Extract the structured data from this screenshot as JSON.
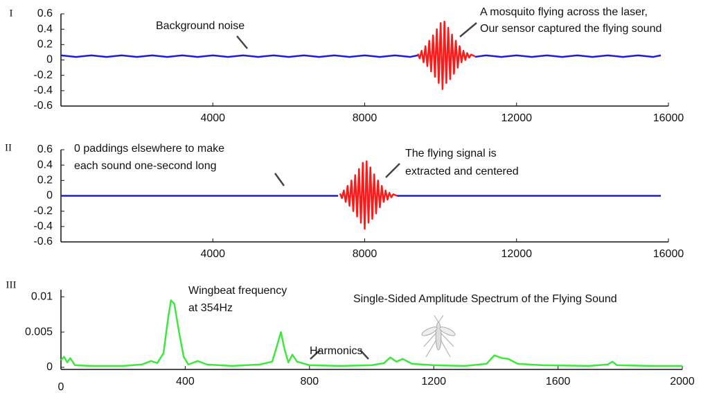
{
  "chart_data": [
    {
      "type": "line",
      "panel_label": "I",
      "annotations": [
        "Background noise",
        "A mosquito flying across the laser,",
        "Our sensor captured the flying sound"
      ],
      "xlim": [
        0,
        16000
      ],
      "xticks": [
        4000,
        8000,
        12000,
        16000
      ],
      "ylim": [
        -0.6,
        0.6
      ],
      "yticks": [
        0.6,
        0.4,
        0.2,
        0,
        -0.2,
        -0.4,
        -0.6
      ],
      "series": [
        {
          "color": "#1a1ae6",
          "x": [
            0,
            400,
            800,
            1200,
            1600,
            2000,
            2400,
            2800,
            3200,
            3600,
            4000,
            4400,
            4800,
            5200,
            5600,
            6000,
            6400,
            6800,
            7200,
            7600,
            8000,
            8400,
            8800,
            9200,
            9400,
            9500,
            10900,
            11200,
            11600,
            12000,
            12400,
            12800,
            13200,
            13600,
            14000,
            14400,
            14800,
            15200,
            15600,
            15800
          ],
          "values": [
            0.06,
            0.04,
            0.06,
            0.04,
            0.06,
            0.04,
            0.06,
            0.04,
            0.06,
            0.04,
            0.06,
            0.04,
            0.06,
            0.04,
            0.06,
            0.04,
            0.06,
            0.04,
            0.06,
            0.04,
            0.06,
            0.04,
            0.06,
            0.04,
            0.06,
            null,
            0.04,
            0.06,
            0.04,
            0.06,
            0.04,
            0.06,
            0.04,
            0.06,
            0.04,
            0.06,
            0.04,
            0.06,
            0.04,
            0.06
          ]
        },
        {
          "color": "#ff1a1a",
          "x": [
            9400,
            9450,
            9500,
            9550,
            9600,
            9650,
            9700,
            9750,
            9800,
            9850,
            9900,
            9950,
            10000,
            10050,
            10100,
            10150,
            10200,
            10250,
            10300,
            10350,
            10400,
            10450,
            10500,
            10550,
            10600,
            10650,
            10700,
            10750,
            10800,
            10900
          ],
          "values": [
            0.08,
            0.02,
            0.12,
            -0.03,
            0.18,
            -0.08,
            0.25,
            -0.15,
            0.32,
            -0.22,
            0.4,
            -0.3,
            0.48,
            -0.38,
            0.5,
            -0.3,
            0.42,
            -0.25,
            0.33,
            -0.18,
            0.25,
            -0.1,
            0.18,
            -0.03,
            0.12,
            0,
            0.09,
            0.03,
            0.07,
            0.05
          ]
        }
      ]
    },
    {
      "type": "line",
      "panel_label": "II",
      "annotations": [
        "0 paddings elsewhere to make",
        "each sound one-second long",
        "The flying signal is",
        "extracted and centered"
      ],
      "xlim": [
        0,
        16000
      ],
      "xticks": [
        4000,
        8000,
        12000,
        16000
      ],
      "ylim": [
        -0.6,
        0.6
      ],
      "yticks": [
        0.6,
        0.4,
        0.2,
        0,
        -0.2,
        -0.4,
        -0.6
      ],
      "series": [
        {
          "color": "#1a1ae6",
          "x": [
            0,
            7300,
            7350,
            8850,
            15800
          ],
          "values": [
            0,
            0,
            null,
            0,
            0
          ]
        },
        {
          "color": "#ff1a1a",
          "x": [
            7350,
            7400,
            7450,
            7500,
            7550,
            7600,
            7650,
            7700,
            7750,
            7800,
            7850,
            7900,
            7950,
            8000,
            8050,
            8100,
            8150,
            8200,
            8250,
            8300,
            8350,
            8400,
            8450,
            8500,
            8550,
            8600,
            8650,
            8700,
            8750,
            8850
          ],
          "values": [
            0.03,
            -0.03,
            0.07,
            -0.08,
            0.13,
            -0.13,
            0.2,
            -0.2,
            0.27,
            -0.27,
            0.35,
            -0.35,
            0.43,
            -0.43,
            0.45,
            -0.35,
            0.37,
            -0.3,
            0.28,
            -0.23,
            0.2,
            -0.15,
            0.13,
            -0.08,
            0.07,
            -0.05,
            0.04,
            -0.02,
            0.02,
            0
          ]
        }
      ]
    },
    {
      "type": "line",
      "panel_label": "III",
      "annotations": [
        "Wingbeat frequency",
        "at 354Hz",
        "Harmonics",
        "Single-Sided Amplitude Spectrum of the Flying Sound"
      ],
      "xlim": [
        0,
        2000
      ],
      "xticks": [
        0,
        400,
        800,
        1200,
        1600,
        2000
      ],
      "ylim": [
        -0.0003,
        0.011
      ],
      "yticks": [
        0.01,
        0.005,
        0
      ],
      "series": [
        {
          "color": "#3de83d",
          "x": [
            0,
            10,
            20,
            30,
            45,
            100,
            200,
            260,
            290,
            310,
            330,
            345,
            354,
            365,
            380,
            395,
            410,
            440,
            470,
            550,
            640,
            680,
            695,
            708,
            720,
            732,
            745,
            760,
            800,
            900,
            1000,
            1040,
            1060,
            1080,
            1100,
            1130,
            1200,
            1300,
            1370,
            1395,
            1420,
            1440,
            1470,
            1550,
            1700,
            1760,
            1775,
            1790,
            1900,
            2000
          ],
          "values": [
            0.001,
            0.0015,
            0.0007,
            0.0013,
            0.0003,
            0.0002,
            0.0002,
            0.0004,
            0.0009,
            0.0006,
            0.002,
            0.007,
            0.0095,
            0.009,
            0.005,
            0.0015,
            0.0004,
            0.0009,
            0.0004,
            0.0002,
            0.0004,
            0.0008,
            0.003,
            0.005,
            0.0025,
            0.0007,
            0.0018,
            0.0008,
            0.0003,
            0.0002,
            0.0003,
            0.0006,
            0.0014,
            0.0008,
            0.0012,
            0.0005,
            0.0003,
            0.0002,
            0.0005,
            0.0017,
            0.0013,
            0.0012,
            0.0005,
            0.0003,
            0.0002,
            0.0004,
            0.0008,
            0.0003,
            0.0002,
            0.0002
          ]
        }
      ]
    }
  ]
}
